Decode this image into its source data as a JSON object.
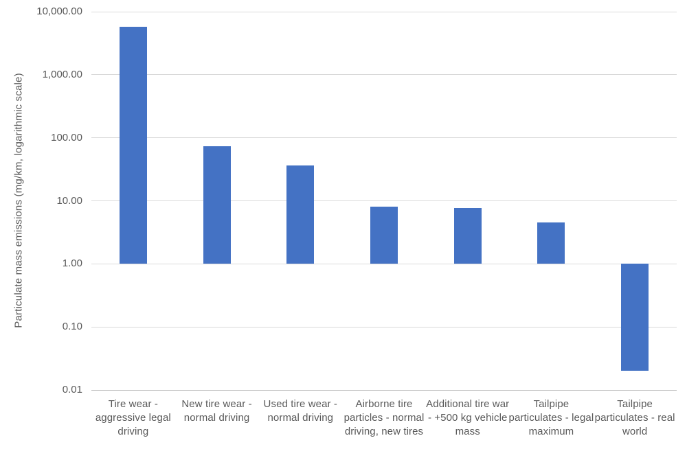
{
  "chart_data": {
    "type": "bar",
    "title": "",
    "xlabel": "",
    "ylabel": "Particulate mass emissions (mg/km, logarithmic scale)",
    "scale": "log10",
    "ylim": [
      0.01,
      10000
    ],
    "baseline": 1,
    "grid": true,
    "legend": "none",
    "bar_color": "#4472C4",
    "gridline_color": "#d9d9d9",
    "axis_text_color": "#595959",
    "yticks": [
      {
        "value": 10000,
        "label": "10,000.00"
      },
      {
        "value": 1000,
        "label": "1,000.00"
      },
      {
        "value": 100,
        "label": "100.00"
      },
      {
        "value": 10,
        "label": "10.00"
      },
      {
        "value": 1,
        "label": "1.00"
      },
      {
        "value": 0.1,
        "label": "0.10"
      },
      {
        "value": 0.01,
        "label": "0.01"
      }
    ],
    "categories": [
      "Tire wear - aggressive legal driving",
      "New tire wear - normal driving",
      "Used tire wear - normal driving",
      "Airborne tire particles - normal driving, new tires",
      "Additional tire war - +500 kg vehicle mass",
      "Tailpipe particulates - legal maximum",
      "Tailpipe particulates - real world"
    ],
    "values": [
      5760,
      73,
      36,
      8,
      7.7,
      4.5,
      0.02
    ]
  }
}
